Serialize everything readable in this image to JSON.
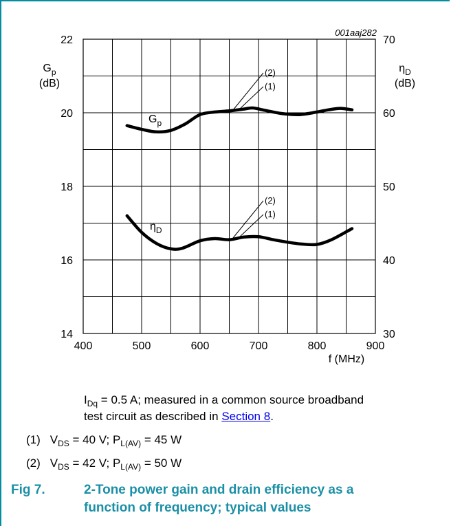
{
  "figure_id": "001aaj282",
  "chart_data": {
    "type": "line",
    "x_range": [
      400,
      900
    ],
    "x_ticks": [
      "400",
      "500",
      "600",
      "700",
      "800",
      "900"
    ],
    "xlabel": "f (MHz)",
    "left_axis": {
      "label_symbol": "G",
      "label_sub": "p",
      "label_unit": "(dB)",
      "range": [
        14,
        22
      ],
      "ticks": [
        "14",
        "16",
        "18",
        "20",
        "22"
      ]
    },
    "right_axis": {
      "label_symbol": "η",
      "label_sub": "D",
      "label_unit": "(dB)",
      "range": [
        30,
        70
      ],
      "ticks": [
        "30",
        "40",
        "50",
        "60",
        "70"
      ]
    },
    "grid": true,
    "series": [
      {
        "name": "Gp",
        "name_symbol": "G",
        "name_sub": "p",
        "axis": "left",
        "x": [
          475,
          500,
          525,
          550,
          575,
          600,
          625,
          650,
          675,
          690,
          710,
          740,
          770,
          800,
          820,
          840,
          860
        ],
        "y": [
          19.65,
          19.55,
          19.48,
          19.52,
          19.7,
          19.95,
          20.02,
          20.05,
          20.1,
          20.13,
          20.07,
          19.98,
          19.95,
          20.02,
          20.08,
          20.12,
          20.08
        ]
      },
      {
        "name": "ηD",
        "name_symbol": "η",
        "name_sub": "D",
        "axis": "left",
        "x": [
          475,
          500,
          525,
          550,
          570,
          600,
          625,
          650,
          675,
          700,
          725,
          750,
          775,
          800,
          825,
          860
        ],
        "y": [
          17.2,
          16.75,
          16.45,
          16.3,
          16.32,
          16.52,
          16.58,
          16.55,
          16.62,
          16.63,
          16.55,
          16.48,
          16.43,
          16.42,
          16.55,
          16.85
        ]
      }
    ],
    "callouts": [
      "(2)",
      "(1)"
    ]
  },
  "notes": {
    "condition_sym": "I",
    "condition_sub": "Dq",
    "condition_text": " = 0.5 A; measured in a common source broadband",
    "condition_text2": "test circuit as described in ",
    "section_link": "Section 8",
    "period": ".",
    "n1_num": "(1)",
    "n1_a": "V",
    "n1_a_sub": "DS",
    "n1_b": " = 40 V; P",
    "n1_b_sub": "L(AV)",
    "n1_c": " = 45 W",
    "n2_num": "(2)",
    "n2_a": "V",
    "n2_a_sub": "DS",
    "n2_b": " = 42 V; P",
    "n2_b_sub": "L(AV)",
    "n2_c": " = 50 W"
  },
  "caption": {
    "number": "Fig 7.",
    "line1": "2-Tone power gain and drain efficiency as a",
    "line2": "function of frequency; typical values"
  },
  "colors": {
    "frame": "#008ea0",
    "caption": "#1a8fa6",
    "link": "#0000ee",
    "grid": "#000000"
  }
}
